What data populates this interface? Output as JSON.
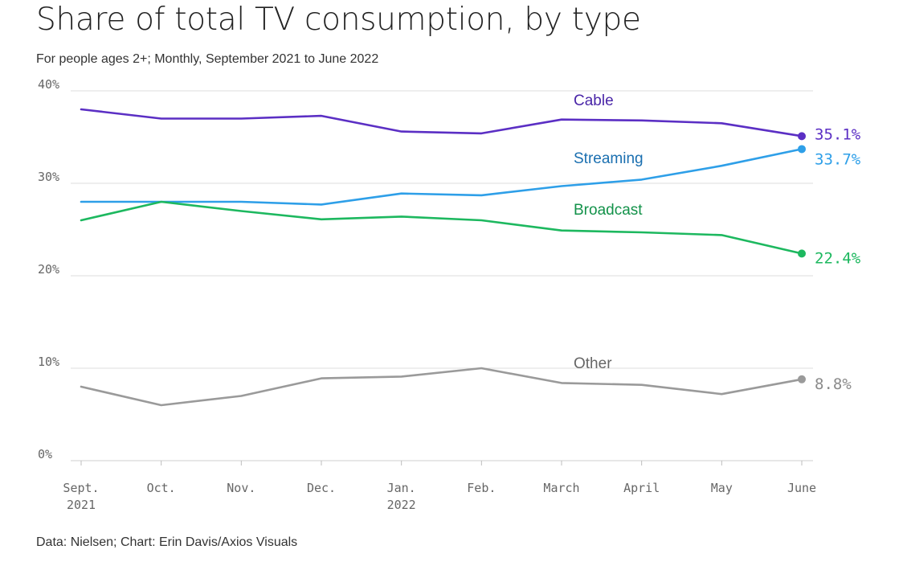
{
  "title": "Share of total TV consumption, by type",
  "subtitle": "For people ages 2+; Monthly, September 2021 to June 2022",
  "source": "Data: Nielsen; Chart: Erin Davis/Axios Visuals",
  "chart_data": {
    "type": "line",
    "x": [
      "Sept.",
      "Oct.",
      "Nov.",
      "Dec.",
      "Jan.",
      "Feb.",
      "March",
      "April",
      "May",
      "June"
    ],
    "x_year_labels": [
      "2021",
      "",
      "",
      "",
      "2022",
      "",
      "",
      "",
      "",
      ""
    ],
    "ylim": [
      0,
      40
    ],
    "yticks": [
      0,
      10,
      20,
      30,
      40
    ],
    "ytick_labels": [
      "0%",
      "10%",
      "20%",
      "30%",
      "40%"
    ],
    "grid": true,
    "series": [
      {
        "name": "Cable",
        "color": "#5b2fc4",
        "label_color": "#4a26a8",
        "end_label": "35.1%",
        "values": [
          38.0,
          37.0,
          37.0,
          37.3,
          35.6,
          35.4,
          36.9,
          36.8,
          36.5,
          35.1
        ]
      },
      {
        "name": "Streaming",
        "color": "#2e9fe8",
        "label_color": "#1a6fb0",
        "end_label": "33.7%",
        "values": [
          28.0,
          28.0,
          28.0,
          27.7,
          28.9,
          28.7,
          29.7,
          30.4,
          31.9,
          33.7
        ]
      },
      {
        "name": "Broadcast",
        "color": "#1db85f",
        "label_color": "#13924a",
        "end_label": "22.4%",
        "values": [
          26.0,
          28.0,
          27.0,
          26.1,
          26.4,
          26.0,
          24.9,
          24.7,
          24.4,
          22.4
        ]
      },
      {
        "name": "Other",
        "color": "#9a9a9a",
        "label_color": "#666666",
        "end_label": "8.8%",
        "values": [
          8.0,
          6.0,
          7.0,
          8.9,
          9.1,
          10.0,
          8.4,
          8.2,
          7.2,
          8.8
        ]
      }
    ]
  }
}
